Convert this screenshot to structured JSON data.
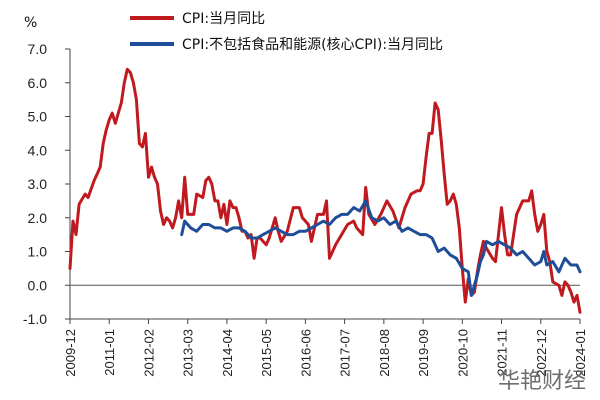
{
  "watermark": "华艳财经",
  "chart_data": {
    "type": "line",
    "ylabel": "%",
    "ylim": [
      -1.0,
      7.0
    ],
    "yticks": [
      "7.0",
      "6.0",
      "5.0",
      "4.0",
      "3.0",
      "2.0",
      "1.0",
      "0.0",
      "-1.0"
    ],
    "grid": false,
    "legend_position": "top",
    "x_categories": [
      "2009-12",
      "2011-01",
      "2012-02",
      "2013-03",
      "2014-04",
      "2015-05",
      "2016-06",
      "2017-07",
      "2018-08",
      "2019-09",
      "2020-10",
      "2021-11",
      "2022-12",
      "2024-01"
    ],
    "series": [
      {
        "name": "CPI:当月同比",
        "color": "#c0191f",
        "points": [
          [
            "2009-12",
            0.5
          ],
          [
            "2010-01",
            1.9
          ],
          [
            "2010-02",
            1.5
          ],
          [
            "2010-03",
            2.4
          ],
          [
            "2010-05",
            2.7
          ],
          [
            "2010-06",
            2.6
          ],
          [
            "2010-08",
            3.1
          ],
          [
            "2010-09",
            3.3
          ],
          [
            "2010-10",
            3.5
          ],
          [
            "2010-11",
            4.2
          ],
          [
            "2010-12",
            4.6
          ],
          [
            "2011-01",
            4.9
          ],
          [
            "2011-02",
            5.1
          ],
          [
            "2011-03",
            4.8
          ],
          [
            "2011-04",
            5.1
          ],
          [
            "2011-05",
            5.4
          ],
          [
            "2011-06",
            6.0
          ],
          [
            "2011-07",
            6.4
          ],
          [
            "2011-08",
            6.3
          ],
          [
            "2011-09",
            6.0
          ],
          [
            "2011-10",
            5.5
          ],
          [
            "2011-11",
            4.2
          ],
          [
            "2011-12",
            4.1
          ],
          [
            "2012-01",
            4.5
          ],
          [
            "2012-02",
            3.2
          ],
          [
            "2012-03",
            3.5
          ],
          [
            "2012-04",
            3.2
          ],
          [
            "2012-05",
            3.0
          ],
          [
            "2012-06",
            2.2
          ],
          [
            "2012-07",
            1.8
          ],
          [
            "2012-08",
            2.0
          ],
          [
            "2012-09",
            1.9
          ],
          [
            "2012-10",
            1.7
          ],
          [
            "2012-11",
            2.0
          ],
          [
            "2012-12",
            2.5
          ],
          [
            "2013-01",
            2.0
          ],
          [
            "2013-02",
            3.2
          ],
          [
            "2013-03",
            2.1
          ],
          [
            "2013-05",
            2.1
          ],
          [
            "2013-06",
            2.7
          ],
          [
            "2013-08",
            2.6
          ],
          [
            "2013-09",
            3.1
          ],
          [
            "2013-10",
            3.2
          ],
          [
            "2013-11",
            3.0
          ],
          [
            "2013-12",
            2.5
          ],
          [
            "2014-01",
            2.5
          ],
          [
            "2014-02",
            2.0
          ],
          [
            "2014-03",
            2.4
          ],
          [
            "2014-04",
            1.8
          ],
          [
            "2014-05",
            2.5
          ],
          [
            "2014-06",
            2.3
          ],
          [
            "2014-07",
            2.3
          ],
          [
            "2014-08",
            2.0
          ],
          [
            "2014-09",
            1.6
          ],
          [
            "2014-10",
            1.6
          ],
          [
            "2014-11",
            1.4
          ],
          [
            "2014-12",
            1.5
          ],
          [
            "2015-01",
            0.8
          ],
          [
            "2015-02",
            1.4
          ],
          [
            "2015-03",
            1.4
          ],
          [
            "2015-05",
            1.2
          ],
          [
            "2015-06",
            1.4
          ],
          [
            "2015-08",
            2.0
          ],
          [
            "2015-09",
            1.6
          ],
          [
            "2015-10",
            1.3
          ],
          [
            "2015-12",
            1.6
          ],
          [
            "2016-02",
            2.3
          ],
          [
            "2016-04",
            2.3
          ],
          [
            "2016-05",
            2.0
          ],
          [
            "2016-06",
            1.9
          ],
          [
            "2016-07",
            1.8
          ],
          [
            "2016-08",
            1.3
          ],
          [
            "2016-10",
            2.1
          ],
          [
            "2016-12",
            2.1
          ],
          [
            "2017-01",
            2.5
          ],
          [
            "2017-02",
            0.8
          ],
          [
            "2017-04",
            1.2
          ],
          [
            "2017-06",
            1.5
          ],
          [
            "2017-08",
            1.8
          ],
          [
            "2017-10",
            1.9
          ],
          [
            "2017-11",
            1.7
          ],
          [
            "2018-01",
            1.5
          ],
          [
            "2018-02",
            2.9
          ],
          [
            "2018-03",
            2.1
          ],
          [
            "2018-05",
            1.8
          ],
          [
            "2018-07",
            2.1
          ],
          [
            "2018-09",
            2.5
          ],
          [
            "2018-11",
            2.2
          ],
          [
            "2019-01",
            1.7
          ],
          [
            "2019-03",
            2.3
          ],
          [
            "2019-05",
            2.7
          ],
          [
            "2019-07",
            2.8
          ],
          [
            "2019-08",
            2.8
          ],
          [
            "2019-09",
            3.0
          ],
          [
            "2019-10",
            3.8
          ],
          [
            "2019-11",
            4.5
          ],
          [
            "2019-12",
            4.5
          ],
          [
            "2020-01",
            5.4
          ],
          [
            "2020-02",
            5.2
          ],
          [
            "2020-03",
            4.3
          ],
          [
            "2020-04",
            3.3
          ],
          [
            "2020-05",
            2.4
          ],
          [
            "2020-06",
            2.5
          ],
          [
            "2020-07",
            2.7
          ],
          [
            "2020-08",
            2.4
          ],
          [
            "2020-09",
            1.7
          ],
          [
            "2020-10",
            0.5
          ],
          [
            "2020-11",
            -0.5
          ],
          [
            "2020-12",
            0.2
          ],
          [
            "2021-01",
            -0.3
          ],
          [
            "2021-02",
            -0.2
          ],
          [
            "2021-03",
            0.4
          ],
          [
            "2021-04",
            0.9
          ],
          [
            "2021-05",
            1.3
          ],
          [
            "2021-06",
            1.1
          ],
          [
            "2021-08",
            0.8
          ],
          [
            "2021-09",
            0.7
          ],
          [
            "2021-10",
            1.5
          ],
          [
            "2021-11",
            2.3
          ],
          [
            "2021-12",
            1.5
          ],
          [
            "2022-01",
            0.9
          ],
          [
            "2022-02",
            0.9
          ],
          [
            "2022-03",
            1.5
          ],
          [
            "2022-04",
            2.1
          ],
          [
            "2022-06",
            2.5
          ],
          [
            "2022-08",
            2.5
          ],
          [
            "2022-09",
            2.8
          ],
          [
            "2022-10",
            2.1
          ],
          [
            "2022-11",
            1.6
          ],
          [
            "2022-12",
            1.8
          ],
          [
            "2023-01",
            2.1
          ],
          [
            "2023-02",
            1.0
          ],
          [
            "2023-03",
            0.7
          ],
          [
            "2023-04",
            0.1
          ],
          [
            "2023-06",
            0.0
          ],
          [
            "2023-07",
            -0.3
          ],
          [
            "2023-08",
            0.1
          ],
          [
            "2023-09",
            0.0
          ],
          [
            "2023-10",
            -0.2
          ],
          [
            "2023-11",
            -0.5
          ],
          [
            "2023-12",
            -0.3
          ],
          [
            "2024-01",
            -0.8
          ]
        ]
      },
      {
        "name": "CPI:不包括食品和能源(核心CPI):当月同比",
        "color": "#1f4e99",
        "points": [
          [
            "2013-01",
            1.5
          ],
          [
            "2013-02",
            1.9
          ],
          [
            "2013-04",
            1.7
          ],
          [
            "2013-06",
            1.6
          ],
          [
            "2013-08",
            1.8
          ],
          [
            "2013-10",
            1.8
          ],
          [
            "2013-12",
            1.7
          ],
          [
            "2014-02",
            1.7
          ],
          [
            "2014-04",
            1.6
          ],
          [
            "2014-06",
            1.7
          ],
          [
            "2014-08",
            1.7
          ],
          [
            "2014-10",
            1.6
          ],
          [
            "2014-12",
            1.4
          ],
          [
            "2015-02",
            1.4
          ],
          [
            "2015-04",
            1.5
          ],
          [
            "2015-06",
            1.6
          ],
          [
            "2015-08",
            1.7
          ],
          [
            "2015-10",
            1.6
          ],
          [
            "2015-12",
            1.5
          ],
          [
            "2016-02",
            1.5
          ],
          [
            "2016-04",
            1.6
          ],
          [
            "2016-06",
            1.6
          ],
          [
            "2016-08",
            1.7
          ],
          [
            "2016-10",
            1.8
          ],
          [
            "2016-12",
            1.9
          ],
          [
            "2017-02",
            1.8
          ],
          [
            "2017-04",
            2.0
          ],
          [
            "2017-06",
            2.1
          ],
          [
            "2017-08",
            2.1
          ],
          [
            "2017-10",
            2.3
          ],
          [
            "2017-12",
            2.2
          ],
          [
            "2018-02",
            2.5
          ],
          [
            "2018-04",
            2.0
          ],
          [
            "2018-06",
            1.9
          ],
          [
            "2018-08",
            2.0
          ],
          [
            "2018-10",
            1.8
          ],
          [
            "2018-12",
            1.9
          ],
          [
            "2019-02",
            1.6
          ],
          [
            "2019-04",
            1.7
          ],
          [
            "2019-06",
            1.6
          ],
          [
            "2019-08",
            1.5
          ],
          [
            "2019-10",
            1.5
          ],
          [
            "2019-12",
            1.4
          ],
          [
            "2020-02",
            1.0
          ],
          [
            "2020-04",
            1.1
          ],
          [
            "2020-06",
            0.9
          ],
          [
            "2020-08",
            0.8
          ],
          [
            "2020-10",
            0.5
          ],
          [
            "2020-12",
            0.4
          ],
          [
            "2021-01",
            -0.3
          ],
          [
            "2021-02",
            0.0
          ],
          [
            "2021-03",
            0.3
          ],
          [
            "2021-04",
            0.7
          ],
          [
            "2021-05",
            0.9
          ],
          [
            "2021-06",
            1.3
          ],
          [
            "2021-08",
            1.2
          ],
          [
            "2021-10",
            1.3
          ],
          [
            "2021-12",
            1.2
          ],
          [
            "2022-02",
            1.1
          ],
          [
            "2022-04",
            0.9
          ],
          [
            "2022-06",
            1.0
          ],
          [
            "2022-08",
            0.8
          ],
          [
            "2022-10",
            0.6
          ],
          [
            "2022-12",
            0.7
          ],
          [
            "2023-01",
            1.0
          ],
          [
            "2023-02",
            0.6
          ],
          [
            "2023-04",
            0.7
          ],
          [
            "2023-06",
            0.4
          ],
          [
            "2023-08",
            0.8
          ],
          [
            "2023-10",
            0.6
          ],
          [
            "2023-12",
            0.6
          ],
          [
            "2024-01",
            0.4
          ]
        ]
      }
    ]
  }
}
